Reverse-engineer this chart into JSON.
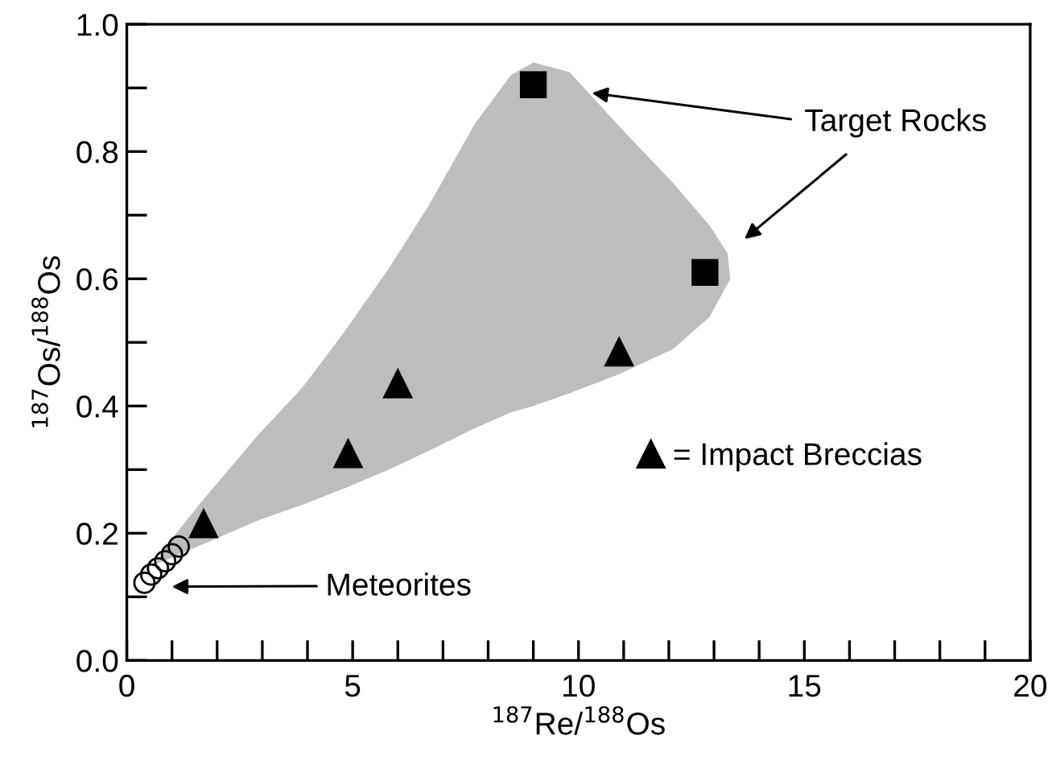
{
  "chart_data": {
    "type": "scatter",
    "xlabel": "$^{187}$Re/$^{188}$Os",
    "ylabel": "$^{187}$Os/$^{188}$Os",
    "xlim": [
      0,
      20
    ],
    "ylim": [
      0,
      1.0
    ],
    "xticks": [
      0,
      {
        "value": 1,
        "label": null
      },
      {
        "value": 2,
        "label": null
      },
      {
        "value": 3,
        "label": null
      },
      {
        "value": 4,
        "label": null
      },
      5,
      {
        "value": 6,
        "label": null
      },
      {
        "value": 7,
        "label": null
      },
      {
        "value": 8,
        "label": null
      },
      {
        "value": 9,
        "label": null
      },
      10,
      {
        "value": 11,
        "label": null
      },
      {
        "value": 12,
        "label": null
      },
      {
        "value": 13,
        "label": null
      },
      {
        "value": 14,
        "label": null
      },
      15,
      {
        "value": 16,
        "label": null
      },
      {
        "value": 17,
        "label": null
      },
      {
        "value": 18,
        "label": null
      },
      {
        "value": 19,
        "label": null
      },
      20
    ],
    "yticks": [
      {
        "value": 0,
        "label": "0.0"
      },
      {
        "value": 0.1,
        "label": null
      },
      {
        "value": 0.2,
        "label": "0.2"
      },
      {
        "value": 0.3,
        "label": null
      },
      {
        "value": 0.4,
        "label": "0.4"
      },
      {
        "value": 0.5,
        "label": null
      },
      {
        "value": 0.6,
        "label": "0.6"
      },
      {
        "value": 0.7,
        "label": null
      },
      {
        "value": 0.8,
        "label": "0.8"
      },
      {
        "value": 0.9,
        "label": null
      },
      {
        "value": 1.0,
        "label": "1.0"
      }
    ],
    "grid": false,
    "legend": "right",
    "series": [
      {
        "marker": "circle",
        "color": "#000000",
        "x": [
          0.39,
          0.54,
          0.69,
          0.85,
          1.0,
          1.15
        ],
        "values": [
          0.122,
          0.135,
          0.145,
          0.156,
          0.167,
          0.179
        ]
      },
      {
        "marker": "triangle",
        "color": "#000000",
        "name": "= Impact Breccias",
        "x": [
          1.7,
          4.9,
          6.0,
          10.9
        ],
        "values": [
          0.215,
          0.325,
          0.435,
          0.485
        ]
      },
      {
        "marker": "square",
        "color": "#000000",
        "x": [
          9.0,
          12.8
        ],
        "values": [
          0.905,
          0.61
        ]
      }
    ],
    "annotations": [
      "Target Rocks",
      "Meteorites"
    ]
  }
}
